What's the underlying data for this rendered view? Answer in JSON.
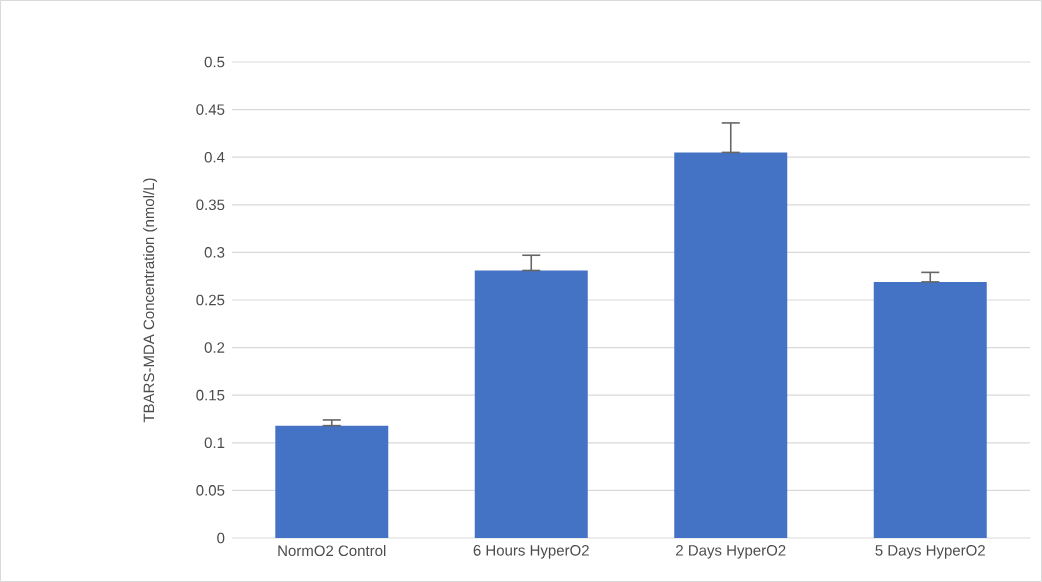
{
  "chart_data": {
    "type": "bar",
    "ylabel": "TBARS-MDA Concentration (nmol/L)",
    "categories": [
      "NormO2 Control",
      "6 Hours HyperO2",
      "2 Days HyperO2",
      "5 Days HyperO2"
    ],
    "values": [
      0.118,
      0.281,
      0.405,
      0.269
    ],
    "errors": [
      [
        0.118,
        0.124
      ],
      [
        0.281,
        0.297
      ],
      [
        0.405,
        0.436
      ],
      [
        0.269,
        0.279
      ]
    ],
    "color": "#4472c4",
    "ylim": [
      0,
      0.5
    ],
    "yticks": [
      0,
      0.05,
      0.1,
      0.15,
      0.2,
      0.25,
      0.3,
      0.35,
      0.4,
      0.45,
      0.5
    ],
    "grid": "y"
  }
}
